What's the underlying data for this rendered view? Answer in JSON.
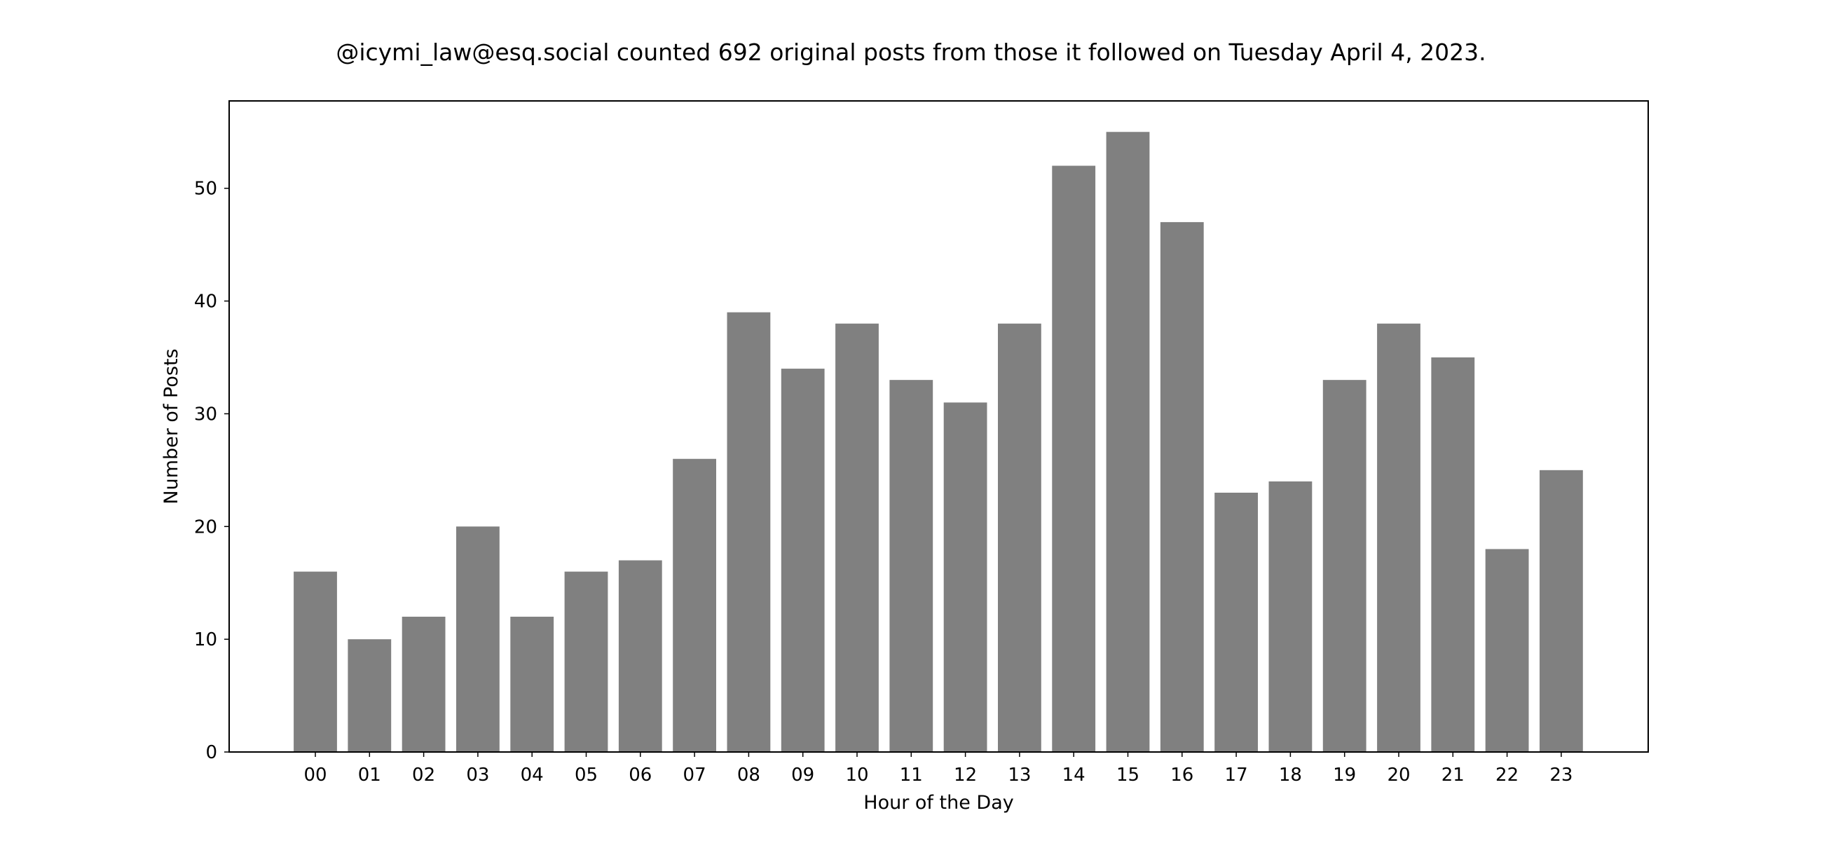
{
  "chart_data": {
    "type": "bar",
    "title": "@icymi_law@esq.social counted 692 original posts from those it followed on Tuesday April 4, 2023.",
    "xlabel": "Hour of the Day",
    "ylabel": "Number of Posts",
    "categories": [
      "00",
      "01",
      "02",
      "03",
      "04",
      "05",
      "06",
      "07",
      "08",
      "09",
      "10",
      "11",
      "12",
      "13",
      "14",
      "15",
      "16",
      "17",
      "18",
      "19",
      "20",
      "21",
      "22",
      "23"
    ],
    "values": [
      16,
      10,
      12,
      20,
      12,
      16,
      17,
      26,
      39,
      34,
      38,
      33,
      31,
      38,
      52,
      55,
      47,
      23,
      24,
      33,
      38,
      35,
      18,
      25
    ],
    "ylim": [
      0,
      57.75
    ],
    "yticks": [
      0,
      10,
      20,
      30,
      40,
      50
    ],
    "grid": false,
    "bar_color": "#808080"
  }
}
